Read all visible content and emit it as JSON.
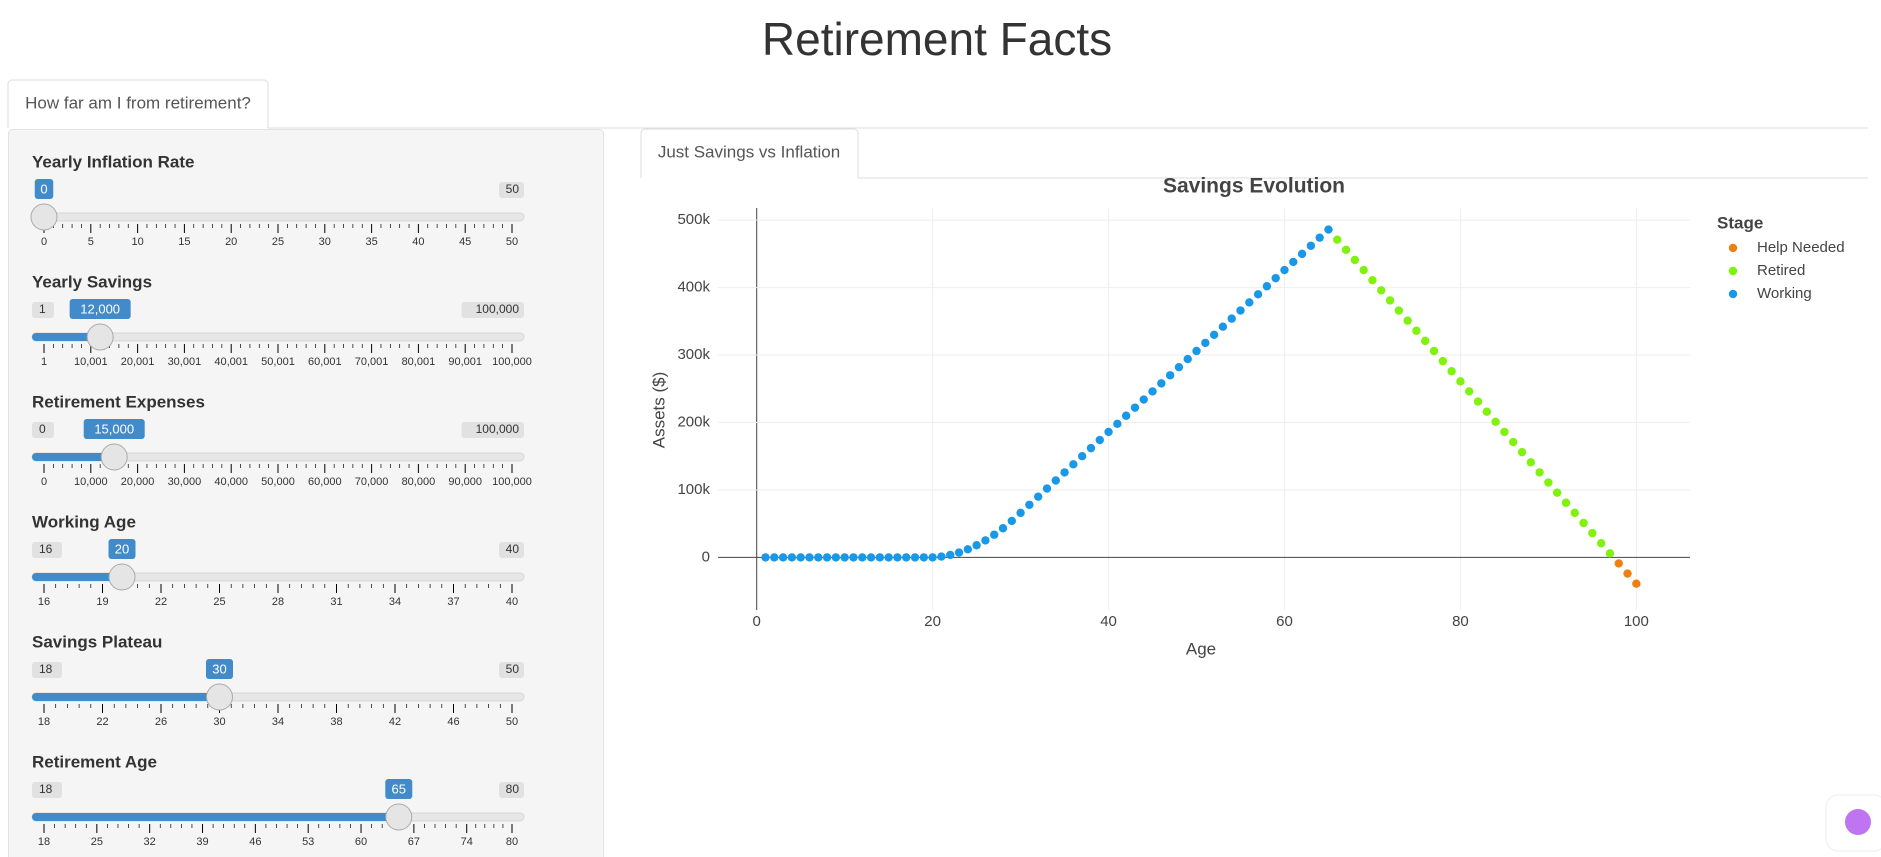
{
  "header": {
    "title": "Retirement Facts"
  },
  "tabs": {
    "main": "How far am I from retirement?",
    "plot": "Just Savings vs Inflation"
  },
  "sliders": [
    {
      "label": "Yearly Inflation Rate",
      "min": 0,
      "max": 50,
      "value": 0,
      "max_label": "50",
      "ticks": [
        0,
        5,
        10,
        15,
        20,
        25,
        30,
        35,
        40,
        45,
        50
      ]
    },
    {
      "label": "Yearly Savings",
      "min": 1,
      "max": 100000,
      "value": 12000,
      "min_label": "1",
      "max_label": "100,000",
      "value_label": "12,000",
      "ticks": [
        1,
        {
          "value": 10001,
          "label": "10,001"
        },
        {
          "value": 20001,
          "label": "20,001"
        },
        {
          "value": 30001,
          "label": "30,001"
        },
        {
          "value": 40001,
          "label": "40,001"
        },
        {
          "value": 50001,
          "label": "50,001"
        },
        {
          "value": 60001,
          "label": "60,001"
        },
        {
          "value": 70001,
          "label": "70,001"
        },
        {
          "value": 80001,
          "label": "80,001"
        },
        {
          "value": 90001,
          "label": "90,001"
        },
        {
          "value": 100000,
          "label": "100,000"
        }
      ]
    },
    {
      "label": "Retirement Expenses",
      "min": 0,
      "max": 100000,
      "value": 15000,
      "min_label": "0",
      "max_label": "100,000",
      "value_label": "15,000",
      "ticks": [
        0,
        {
          "value": 10000,
          "label": "10,000"
        },
        {
          "value": 20000,
          "label": "20,000"
        },
        {
          "value": 30000,
          "label": "30,000"
        },
        {
          "value": 40000,
          "label": "40,000"
        },
        {
          "value": 50000,
          "label": "50,000"
        },
        {
          "value": 60000,
          "label": "60,000"
        },
        {
          "value": 70000,
          "label": "70,000"
        },
        {
          "value": 80000,
          "label": "80,000"
        },
        {
          "value": 90000,
          "label": "90,000"
        },
        {
          "value": 100000,
          "label": "100,000"
        }
      ]
    },
    {
      "label": "Working Age",
      "min": 16,
      "max": 40,
      "value": 20,
      "min_label": "16",
      "max_label": "40",
      "ticks": [
        16,
        19,
        22,
        25,
        28,
        31,
        34,
        37,
        40
      ]
    },
    {
      "label": "Savings Plateau",
      "min": 18,
      "max": 50,
      "value": 30,
      "min_label": "18",
      "max_label": "50",
      "ticks": [
        18,
        22,
        26,
        30,
        34,
        38,
        42,
        46,
        50
      ]
    },
    {
      "label": "Retirement Age",
      "min": 18,
      "max": 80,
      "value": 65,
      "min_label": "18",
      "max_label": "80",
      "ticks": [
        18,
        25,
        32,
        39,
        46,
        53,
        60,
        67,
        74,
        80
      ]
    }
  ],
  "chart_data": {
    "type": "scatter",
    "title": "Savings Evolution",
    "x_label": "Age",
    "y_label": "Assets ($)",
    "legend_title": "Stage",
    "legend_position": "right",
    "grid": true,
    "xlim": [
      -4.4,
      106.1
    ],
    "ylim": [
      -78000,
      518000
    ],
    "xticks": [
      0,
      20,
      40,
      60,
      80,
      100
    ],
    "yticks": [
      0,
      {
        "value": 100000,
        "label": "100k"
      },
      {
        "value": 200000,
        "label": "200k"
      },
      {
        "value": 300000,
        "label": "300k"
      },
      {
        "value": 400000,
        "label": "400k"
      },
      {
        "value": 500000,
        "label": "500k"
      }
    ],
    "series": [
      {
        "name": "Help Needed",
        "color": "#f07f12",
        "x": [
          98,
          99,
          100
        ],
        "values": [
          -9000,
          -24000,
          -39000
        ]
      },
      {
        "name": "Retired",
        "color": "#7ff20e",
        "x": [
          66,
          67,
          68,
          69,
          70,
          71,
          72,
          73,
          74,
          75,
          76,
          77,
          78,
          79,
          80,
          81,
          82,
          83,
          84,
          85,
          86,
          87,
          88,
          89,
          90,
          91,
          92,
          93,
          94,
          95,
          96,
          97
        ],
        "values": [
          471000,
          456000,
          441000,
          426000,
          411000,
          396000,
          381000,
          366000,
          351000,
          336000,
          321000,
          306000,
          291000,
          276000,
          261000,
          246000,
          231000,
          216000,
          201000,
          186000,
          171000,
          156000,
          141000,
          126000,
          111000,
          96000,
          81000,
          66000,
          51000,
          36000,
          21000,
          6000
        ]
      },
      {
        "name": "Working",
        "color": "#1a98e8",
        "x": [
          1,
          2,
          3,
          4,
          5,
          6,
          7,
          8,
          9,
          10,
          11,
          12,
          13,
          14,
          15,
          16,
          17,
          18,
          19,
          20,
          21,
          22,
          23,
          24,
          25,
          26,
          27,
          28,
          29,
          30,
          31,
          32,
          33,
          34,
          35,
          36,
          37,
          38,
          39,
          40,
          41,
          42,
          43,
          44,
          45,
          46,
          47,
          48,
          49,
          50,
          51,
          52,
          53,
          54,
          55,
          56,
          57,
          58,
          59,
          60,
          61,
          62,
          63,
          64,
          65
        ],
        "values": [
          0,
          0,
          0,
          0,
          0,
          0,
          0,
          0,
          0,
          0,
          0,
          0,
          0,
          0,
          0,
          0,
          0,
          0,
          0,
          0,
          1200,
          3600,
          7200,
          12000,
          18000,
          25200,
          33600,
          43200,
          54000,
          66000,
          78000,
          90000,
          102000,
          114000,
          126000,
          138000,
          150000,
          162000,
          174000,
          186000,
          198000,
          210000,
          222000,
          234000,
          246000,
          258000,
          270000,
          282000,
          294000,
          306000,
          318000,
          330000,
          342000,
          354000,
          366000,
          378000,
          390000,
          402000,
          414000,
          426000,
          438000,
          450000,
          462000,
          474000,
          486000
        ]
      }
    ]
  }
}
